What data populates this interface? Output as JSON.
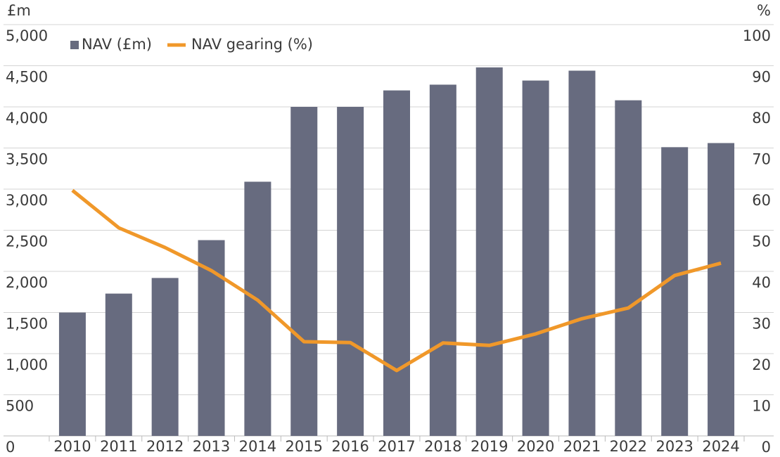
{
  "chart_data": {
    "type": "bar_line",
    "y_label": "£m",
    "y2_label": "%",
    "categories": [
      "2010",
      "2011",
      "2012",
      "2013",
      "2014",
      "2015",
      "2016",
      "2017",
      "2018",
      "2019",
      "2020",
      "2021",
      "2022",
      "2023",
      "2024"
    ],
    "series": [
      {
        "name": "NAV (£m)",
        "type": "bar",
        "color": "#676b7f",
        "axis": "y",
        "values": [
          1500,
          1730,
          1920,
          2380,
          3090,
          4000,
          4000,
          4200,
          4270,
          4480,
          4320,
          4440,
          4080,
          3510,
          3560
        ]
      },
      {
        "name": "NAV gearing (%)",
        "type": "line",
        "color": "#f0982a",
        "axis": "y2",
        "values": [
          59.7,
          50.6,
          45.8,
          40.2,
          33,
          22.9,
          22.7,
          15.9,
          22.6,
          22,
          24.8,
          28.5,
          31.1,
          39,
          42
        ]
      }
    ],
    "ylim": [
      0,
      5000
    ],
    "yticks": [
      0,
      500,
      {
        "value": 1000,
        "label": "1,000"
      },
      {
        "value": 1500,
        "label": "1,500"
      },
      {
        "value": 2000,
        "label": "2,000"
      },
      {
        "value": 2500,
        "label": "2,500"
      },
      {
        "value": 3000,
        "label": "3,000"
      },
      {
        "value": 3500,
        "label": "3,500"
      },
      {
        "value": 4000,
        "label": "4,000"
      },
      {
        "value": 4500,
        "label": "4,500"
      },
      {
        "value": 5000,
        "label": "5,000"
      }
    ],
    "y2lim": [
      0,
      100
    ],
    "y2ticks": [
      0,
      10,
      20,
      30,
      40,
      50,
      60,
      70,
      80,
      90,
      100
    ],
    "grid": true,
    "legend": "top-left"
  }
}
